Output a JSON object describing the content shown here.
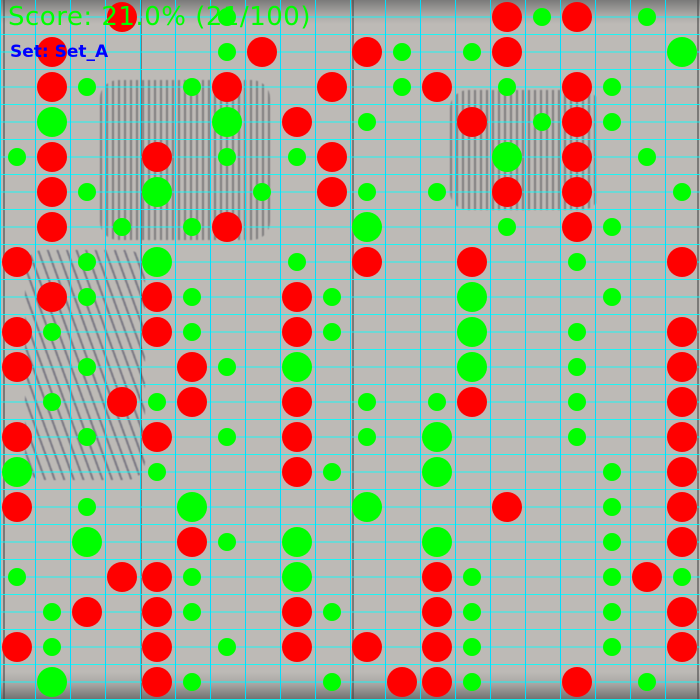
{
  "overlay": {
    "score_text": "Score: 21.0% (21/100)",
    "set_text": "Set: Set_A",
    "score_color": "#00ff00",
    "set_color": "#0000ff",
    "grid_color": "#00ffff"
  },
  "legend_colors": {
    "red": "#ff0000",
    "green": "#00ff00"
  }
}
